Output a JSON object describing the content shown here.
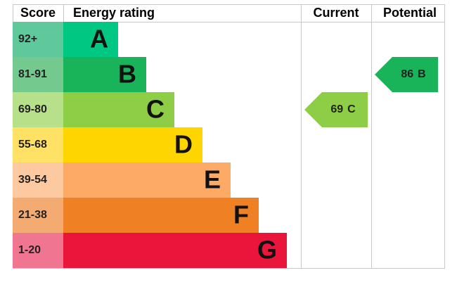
{
  "header": {
    "score": "Score",
    "rating": "Energy rating",
    "current": "Current",
    "potential": "Potential"
  },
  "bands": [
    {
      "score": "92+",
      "letter": "A",
      "color": "#00c781",
      "light": "#5fc99c"
    },
    {
      "score": "81-91",
      "letter": "B",
      "color": "#19b459",
      "light": "#73c98e"
    },
    {
      "score": "69-80",
      "letter": "C",
      "color": "#8dce46",
      "light": "#b7e08b"
    },
    {
      "score": "55-68",
      "letter": "D",
      "color": "#ffd500",
      "light": "#ffe166"
    },
    {
      "score": "39-54",
      "letter": "E",
      "color": "#fcaa65",
      "light": "#fdc9a1"
    },
    {
      "score": "21-38",
      "letter": "F",
      "color": "#ef8023",
      "light": "#f4ab71"
    },
    {
      "score": "1-20",
      "letter": "G",
      "color": "#e9153b",
      "light": "#f07590"
    }
  ],
  "current": {
    "score": 69,
    "letter": "C"
  },
  "potential": {
    "score": 86,
    "letter": "B"
  }
}
